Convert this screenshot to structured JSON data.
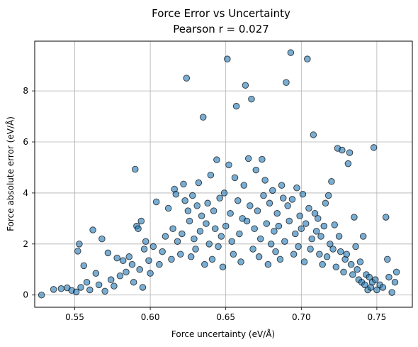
{
  "chart_data": {
    "type": "scatter",
    "title": "Force Error vs Uncertainty",
    "subtitle": "Pearson r = 0.027",
    "xlabel": "Force uncertainty (eV/Å)",
    "ylabel": "Force absolute error (eV/Å)",
    "xlim": [
      0.5235,
      0.7735
    ],
    "ylim": [
      -0.48,
      9.95
    ],
    "xticks": [
      0.55,
      0.6,
      0.65,
      0.7,
      0.75
    ],
    "xtick_labels": [
      "0.55",
      "0.60",
      "0.65",
      "0.70",
      "0.75"
    ],
    "yticks": [
      0,
      2,
      4,
      6,
      8
    ],
    "ytick_labels": [
      "0",
      "2",
      "4",
      "6",
      "8"
    ],
    "grid": true,
    "marker_color": "#1f77b4",
    "marker_edge_color": "#000000",
    "marker_alpha": 0.6,
    "series": [
      {
        "values": [
          [
            0.528,
            0.0
          ],
          [
            0.536,
            0.22
          ],
          [
            0.541,
            0.25
          ],
          [
            0.545,
            0.28
          ],
          [
            0.548,
            0.18
          ],
          [
            0.551,
            0.12
          ],
          [
            0.552,
            1.72
          ],
          [
            0.553,
            2.0
          ],
          [
            0.554,
            0.3
          ],
          [
            0.556,
            1.15
          ],
          [
            0.558,
            0.5
          ],
          [
            0.56,
            0.2
          ],
          [
            0.562,
            2.55
          ],
          [
            0.564,
            0.85
          ],
          [
            0.566,
            0.4
          ],
          [
            0.568,
            2.2
          ],
          [
            0.57,
            0.15
          ],
          [
            0.572,
            1.65
          ],
          [
            0.574,
            0.6
          ],
          [
            0.576,
            0.35
          ],
          [
            0.578,
            1.45
          ],
          [
            0.58,
            0.75
          ],
          [
            0.582,
            1.35
          ],
          [
            0.584,
            0.9
          ],
          [
            0.586,
            1.5
          ],
          [
            0.588,
            1.2
          ],
          [
            0.589,
            0.5
          ],
          [
            0.59,
            4.93
          ],
          [
            0.591,
            2.7
          ],
          [
            0.592,
            2.6
          ],
          [
            0.593,
            1.0
          ],
          [
            0.594,
            2.9
          ],
          [
            0.595,
            0.3
          ],
          [
            0.596,
            1.8
          ],
          [
            0.597,
            2.1
          ],
          [
            0.599,
            1.35
          ],
          [
            0.6,
            0.85
          ],
          [
            0.602,
            1.9
          ],
          [
            0.604,
            3.65
          ],
          [
            0.606,
            1.2
          ],
          [
            0.608,
            1.7
          ],
          [
            0.61,
            2.3
          ],
          [
            0.612,
            3.4
          ],
          [
            0.614,
            1.4
          ],
          [
            0.615,
            2.6
          ],
          [
            0.616,
            4.15
          ],
          [
            0.617,
            3.95
          ],
          [
            0.618,
            2.1
          ],
          [
            0.62,
            1.6
          ],
          [
            0.621,
            2.4
          ],
          [
            0.622,
            4.35
          ],
          [
            0.623,
            3.7
          ],
          [
            0.624,
            8.5
          ],
          [
            0.625,
            3.3
          ],
          [
            0.626,
            2.9
          ],
          [
            0.627,
            1.5
          ],
          [
            0.628,
            3.9
          ],
          [
            0.629,
            2.2
          ],
          [
            0.63,
            1.8
          ],
          [
            0.631,
            3.5
          ],
          [
            0.632,
            4.4
          ],
          [
            0.633,
            2.5
          ],
          [
            0.634,
            3.1
          ],
          [
            0.635,
            6.97
          ],
          [
            0.636,
            1.2
          ],
          [
            0.637,
            2.8
          ],
          [
            0.638,
            3.6
          ],
          [
            0.639,
            2.0
          ],
          [
            0.64,
            4.7
          ],
          [
            0.641,
            1.4
          ],
          [
            0.642,
            3.3
          ],
          [
            0.643,
            2.6
          ],
          [
            0.644,
            5.3
          ],
          [
            0.645,
            1.9
          ],
          [
            0.646,
            3.8
          ],
          [
            0.647,
            2.3
          ],
          [
            0.648,
            1.1
          ],
          [
            0.649,
            4.0
          ],
          [
            0.65,
            2.7
          ],
          [
            0.651,
            9.25
          ],
          [
            0.652,
            5.1
          ],
          [
            0.653,
            3.2
          ],
          [
            0.654,
            2.1
          ],
          [
            0.655,
            1.6
          ],
          [
            0.656,
            4.6
          ],
          [
            0.657,
            7.4
          ],
          [
            0.658,
            3.7
          ],
          [
            0.659,
            2.4
          ],
          [
            0.66,
            1.3
          ],
          [
            0.661,
            3.0
          ],
          [
            0.662,
            4.3
          ],
          [
            0.663,
            8.22
          ],
          [
            0.664,
            2.9
          ],
          [
            0.665,
            5.35
          ],
          [
            0.666,
            3.5
          ],
          [
            0.667,
            7.68
          ],
          [
            0.668,
            1.8
          ],
          [
            0.669,
            2.6
          ],
          [
            0.67,
            4.9
          ],
          [
            0.671,
            3.3
          ],
          [
            0.672,
            1.5
          ],
          [
            0.673,
            2.2
          ],
          [
            0.674,
            5.32
          ],
          [
            0.675,
            3.9
          ],
          [
            0.676,
            4.5
          ],
          [
            0.677,
            2.8
          ],
          [
            0.678,
            1.2
          ],
          [
            0.679,
            3.6
          ],
          [
            0.68,
            2.0
          ],
          [
            0.681,
            4.1
          ],
          [
            0.682,
            2.5
          ],
          [
            0.683,
            1.7
          ],
          [
            0.684,
            3.2
          ],
          [
            0.685,
            2.7
          ],
          [
            0.686,
            1.4
          ],
          [
            0.687,
            4.3
          ],
          [
            0.688,
            3.8
          ],
          [
            0.689,
            2.1
          ],
          [
            0.69,
            8.33
          ],
          [
            0.691,
            3.5
          ],
          [
            0.692,
            2.9
          ],
          [
            0.693,
            9.5
          ],
          [
            0.694,
            3.75
          ],
          [
            0.695,
            1.6
          ],
          [
            0.696,
            2.4
          ],
          [
            0.697,
            4.2
          ],
          [
            0.698,
            1.9
          ],
          [
            0.699,
            3.1
          ],
          [
            0.7,
            2.6
          ],
          [
            0.701,
            3.95
          ],
          [
            0.702,
            1.3
          ],
          [
            0.703,
            2.8
          ],
          [
            0.704,
            9.25
          ],
          [
            0.705,
            3.4
          ],
          [
            0.706,
            1.8
          ],
          [
            0.707,
            2.2
          ],
          [
            0.708,
            6.28
          ],
          [
            0.709,
            3.2
          ],
          [
            0.71,
            2.5
          ],
          [
            0.711,
            3.0
          ],
          [
            0.712,
            1.6
          ],
          [
            0.713,
            2.3
          ],
          [
            0.714,
            1.2
          ],
          [
            0.715,
            2.7
          ],
          [
            0.716,
            3.6
          ],
          [
            0.717,
            1.5
          ],
          [
            0.718,
            3.9
          ],
          [
            0.719,
            2.0
          ],
          [
            0.72,
            4.45
          ],
          [
            0.721,
            1.8
          ],
          [
            0.722,
            2.75
          ],
          [
            0.723,
            1.1
          ],
          [
            0.724,
            5.75
          ],
          [
            0.725,
            2.3
          ],
          [
            0.726,
            1.7
          ],
          [
            0.727,
            5.68
          ],
          [
            0.728,
            0.9
          ],
          [
            0.729,
            1.4
          ],
          [
            0.73,
            1.6
          ],
          [
            0.731,
            5.15
          ],
          [
            0.732,
            5.58
          ],
          [
            0.733,
            1.2
          ],
          [
            0.734,
            0.8
          ],
          [
            0.735,
            3.05
          ],
          [
            0.736,
            1.9
          ],
          [
            0.737,
            1.0
          ],
          [
            0.738,
            0.6
          ],
          [
            0.739,
            1.3
          ],
          [
            0.74,
            0.5
          ],
          [
            0.741,
            2.3
          ],
          [
            0.742,
            0.4
          ],
          [
            0.743,
            0.8
          ],
          [
            0.744,
            0.2
          ],
          [
            0.745,
            0.7
          ],
          [
            0.746,
            0.3
          ],
          [
            0.747,
            0.5
          ],
          [
            0.748,
            5.78
          ],
          [
            0.749,
            0.6
          ],
          [
            0.75,
            0.2
          ],
          [
            0.752,
            0.4
          ],
          [
            0.754,
            0.3
          ],
          [
            0.756,
            3.05
          ],
          [
            0.757,
            1.4
          ],
          [
            0.758,
            0.7
          ],
          [
            0.76,
            0.1
          ],
          [
            0.762,
            0.5
          ],
          [
            0.763,
            0.9
          ]
        ]
      }
    ]
  }
}
